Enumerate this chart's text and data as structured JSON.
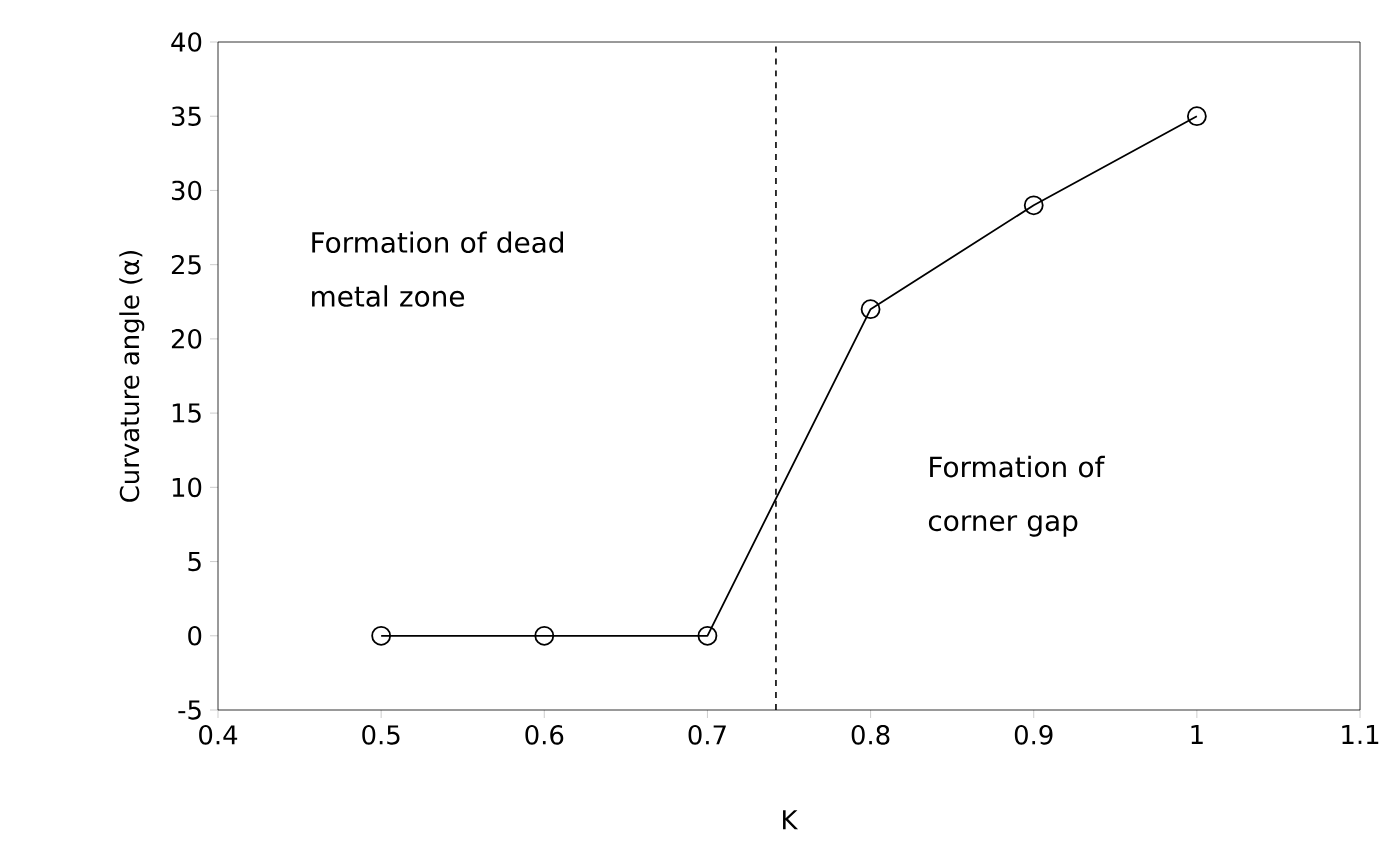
{
  "chart_data": {
    "type": "line",
    "xlabel": "K",
    "ylabel": "Curvature angle (α)",
    "x": [
      0.5,
      0.6,
      0.7,
      0.8,
      0.9,
      1.0
    ],
    "series": [
      {
        "color": "#000000",
        "values": [
          0,
          0,
          0,
          22,
          29,
          35
        ]
      }
    ],
    "xlim": [
      0.4,
      1.1
    ],
    "xticks": [
      0.4,
      0.5,
      0.6,
      0.7,
      0.8,
      0.9,
      1,
      1.1
    ],
    "ylim": [
      -5,
      40
    ],
    "yticks": [
      -5,
      0,
      5,
      10,
      15,
      20,
      25,
      30,
      35,
      40
    ],
    "ref_lines": [
      {
        "axis": "x",
        "value": 0.742,
        "color": "#000000",
        "line_style": "dashed"
      }
    ],
    "annotations": [
      "Formation of dead metal zone",
      "Formation of corner gap"
    ],
    "marker": "circle",
    "line_style": "solid",
    "grid": false
  }
}
